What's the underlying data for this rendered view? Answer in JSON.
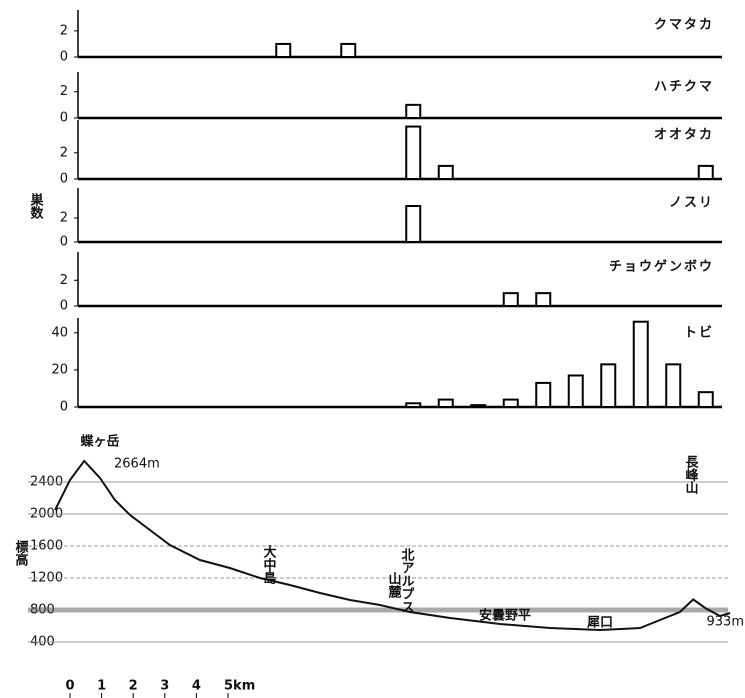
{
  "chart_data": [
    {
      "type": "bar",
      "title": "クマタカ",
      "categories": [
        null,
        null,
        null,
        null,
        null,
        null,
        null,
        null,
        null,
        null,
        null,
        null,
        null,
        null,
        null,
        null,
        null,
        null,
        null,
        null
      ],
      "values": [
        null,
        null,
        null,
        null,
        null,
        null,
        1,
        null,
        1,
        null,
        null,
        null,
        null,
        null,
        null,
        null,
        null,
        null,
        null,
        null
      ],
      "color": "#ffffff",
      "ylim": [
        0,
        3.6
      ],
      "yticks": [
        0,
        2
      ]
    },
    {
      "type": "bar",
      "title": "ハチクマ",
      "categories": [
        null,
        null,
        null,
        null,
        null,
        null,
        null,
        null,
        null,
        null,
        null,
        null,
        null,
        null,
        null,
        null,
        null,
        null,
        null,
        null
      ],
      "values": [
        null,
        null,
        null,
        null,
        null,
        null,
        null,
        null,
        null,
        null,
        1,
        null,
        null,
        null,
        null,
        null,
        null,
        null,
        null,
        null
      ],
      "color": "#ffffff",
      "ylim": [
        0,
        3.5
      ],
      "yticks": [
        0,
        2
      ]
    },
    {
      "type": "bar",
      "title": "オオタカ",
      "categories": [
        null,
        null,
        null,
        null,
        null,
        null,
        null,
        null,
        null,
        null,
        null,
        null,
        null,
        null,
        null,
        null,
        null,
        null,
        null,
        null
      ],
      "values": [
        null,
        null,
        null,
        null,
        null,
        null,
        null,
        null,
        null,
        null,
        4,
        1,
        null,
        null,
        null,
        null,
        null,
        null,
        null,
        1
      ],
      "color": "#ffffff",
      "ylim": [
        0,
        4.5
      ],
      "yticks": [
        0,
        2
      ]
    },
    {
      "type": "bar",
      "title": "ノスリ",
      "ylabel": "巣数",
      "categories": [
        null,
        null,
        null,
        null,
        null,
        null,
        null,
        null,
        null,
        null,
        null,
        null,
        null,
        null,
        null,
        null,
        null,
        null,
        null,
        null
      ],
      "values": [
        null,
        null,
        null,
        null,
        null,
        null,
        null,
        null,
        null,
        null,
        3,
        null,
        null,
        null,
        null,
        null,
        null,
        null,
        null,
        null
      ],
      "color": "#ffffff",
      "ylim": [
        0,
        4.5
      ],
      "yticks": [
        0,
        2
      ]
    },
    {
      "type": "bar",
      "title": "チョウゲンボウ",
      "categories": [
        null,
        null,
        null,
        null,
        null,
        null,
        null,
        null,
        null,
        null,
        null,
        null,
        null,
        null,
        null,
        null,
        null,
        null,
        null,
        null
      ],
      "values": [
        null,
        null,
        null,
        null,
        null,
        null,
        null,
        null,
        null,
        null,
        null,
        null,
        null,
        1,
        1,
        null,
        null,
        null,
        null,
        null
      ],
      "color": "#ffffff",
      "ylim": [
        0,
        4.2
      ],
      "yticks": [
        0,
        2
      ]
    },
    {
      "type": "bar",
      "title": "トビ",
      "categories": [
        null,
        null,
        null,
        null,
        null,
        null,
        null,
        null,
        null,
        null,
        null,
        null,
        null,
        null,
        null,
        null,
        null,
        null,
        null,
        null
      ],
      "values": [
        null,
        null,
        null,
        null,
        null,
        null,
        null,
        null,
        null,
        null,
        2,
        4,
        1,
        4,
        13,
        17,
        23,
        46,
        23,
        8
      ],
      "color": "#ffffff",
      "ylim": [
        0,
        48
      ],
      "yticks": [
        0,
        20,
        40
      ]
    },
    {
      "type": "line",
      "ylabel": "標高",
      "x": [
        -0.47,
        0,
        0.45,
        0.95,
        1.42,
        1.9,
        2.53,
        3.16,
        4.11,
        5.06,
        6.01,
        6.96,
        7.91,
        8.86,
        9.81,
        10.76,
        12.03,
        13.61,
        15.19,
        16.77,
        18.04,
        18.67,
        19.3,
        19.72,
        20.1,
        20.57,
        20.89
      ],
      "series": [
        {
          "color": "#111111",
          "values": [
            2050,
            2425,
            2664,
            2450,
            2175,
            1988,
            1800,
            1613,
            1425,
            1325,
            1200,
            1113,
            1013,
            925,
            863,
            775,
            700,
            625,
            575,
            550,
            575,
            675,
            775,
            933,
            825,
            725,
            763
          ]
        }
      ],
      "xlim": [
        -0.5,
        21
      ],
      "xticks": [
        0,
        1,
        2,
        3,
        4,
        {
          "value": 5,
          "label": "5km"
        }
      ],
      "ylim": [
        400,
        2700
      ],
      "yticks": [
        400,
        800,
        1200,
        1600,
        2000,
        2400
      ],
      "grid": true,
      "annotations": [
        "蝶ヶ岳",
        "2664m",
        "大中島",
        "北アルプス",
        "山麓",
        "安曇野平",
        "犀口",
        "長峰山",
        "933m"
      ]
    }
  ]
}
